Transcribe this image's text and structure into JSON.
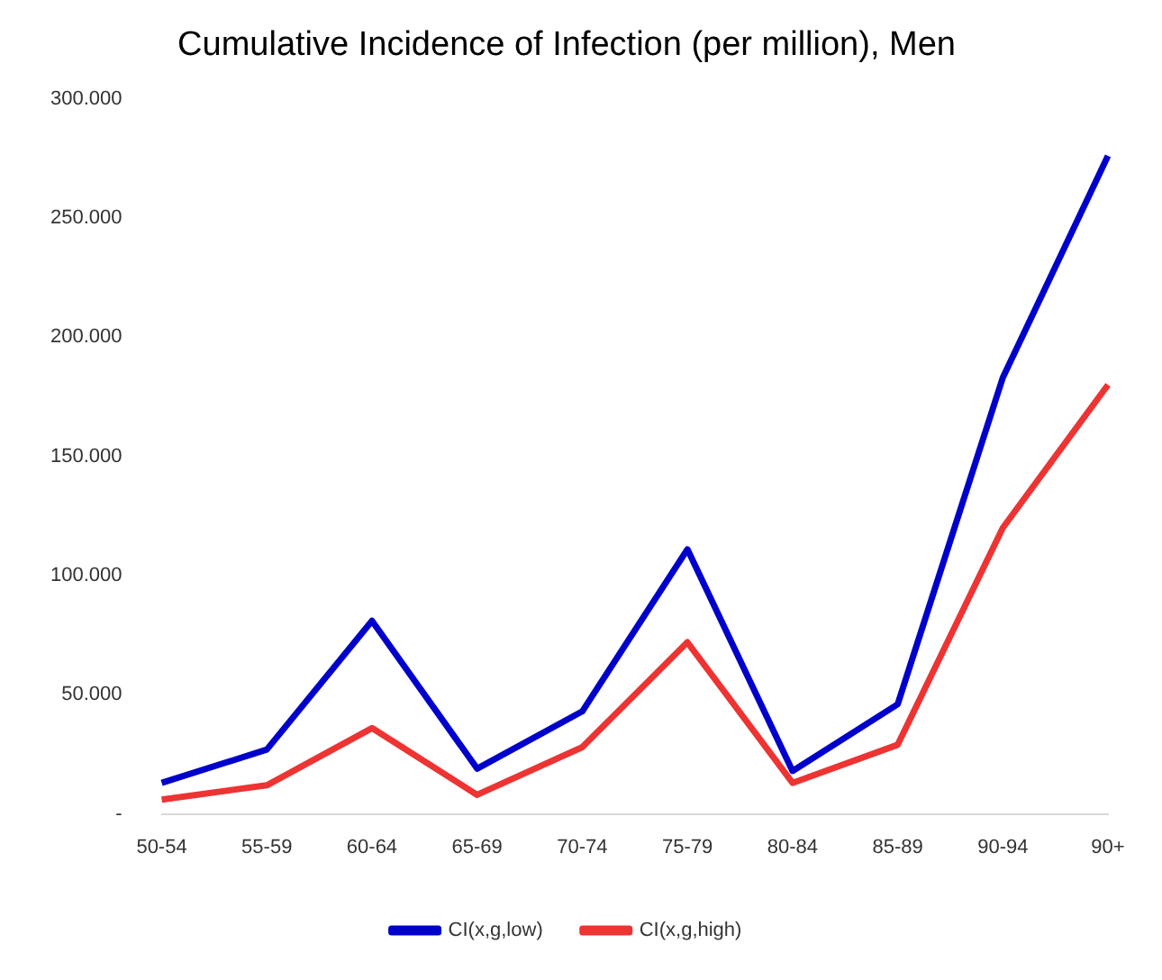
{
  "chart_data": {
    "type": "line",
    "title": "Cumulative Incidence of Infection (per million), Men",
    "categories": [
      "50-54",
      "55-59",
      "60-64",
      "65-69",
      "70-74",
      "75-79",
      "80-84",
      "85-89",
      "90-94",
      "90+"
    ],
    "series": [
      {
        "name": "CI(x,g,low)",
        "color": "#0000cc",
        "values": [
          13000,
          27000,
          81000,
          19000,
          43000,
          111000,
          18000,
          46000,
          183000,
          276000
        ]
      },
      {
        "name": "CI(x,g,high)",
        "color": "#ee3333",
        "values": [
          6000,
          12000,
          36000,
          8000,
          28000,
          72000,
          13000,
          29000,
          120000,
          180000
        ]
      }
    ],
    "ylim": [
      0,
      300000
    ],
    "yticks": [
      {
        "value": 0,
        "label": "-"
      },
      {
        "value": 50000,
        "label": "50.000"
      },
      {
        "value": 100000,
        "label": "100.000"
      },
      {
        "value": 150000,
        "label": "150.000"
      },
      {
        "value": 200000,
        "label": "200.000"
      },
      {
        "value": 250000,
        "label": "250.000"
      },
      {
        "value": 300000,
        "label": "300.000"
      }
    ],
    "grid": false,
    "legend": "bottom",
    "marker": "none",
    "line_style": "solid"
  }
}
